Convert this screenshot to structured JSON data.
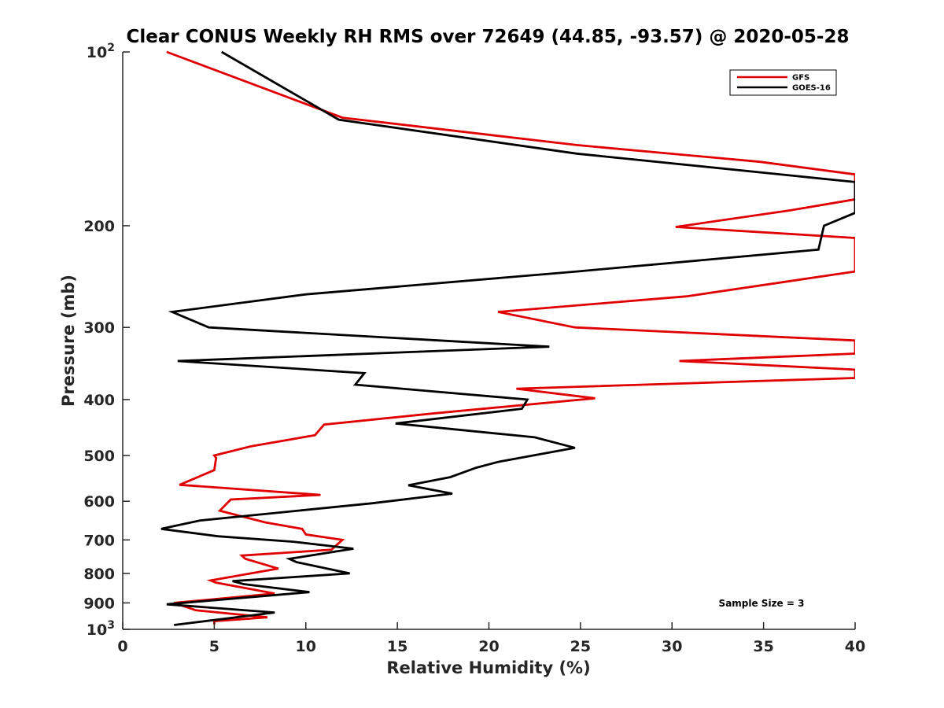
{
  "chart_data": {
    "type": "line",
    "title": "Clear CONUS Weekly RH RMS over 72649 (44.85, -93.57) @ 2020-05-28",
    "xlabel": "Relative Humidity (%)",
    "ylabel": "Pressure (mb)",
    "xlim": [
      0,
      40
    ],
    "ylim": [
      100,
      1000
    ],
    "yscale": "log",
    "y_reversed": true,
    "grid": false,
    "legend_position": "top-right",
    "x_ticks": [
      "0",
      "5",
      "10",
      "15",
      "20",
      "25",
      "30",
      "35",
      "40"
    ],
    "y_ticks": [
      {
        "value": 100,
        "base": "10",
        "exp": "2"
      },
      {
        "value": 200,
        "label": "200"
      },
      {
        "value": 300,
        "label": "300"
      },
      {
        "value": 400,
        "label": "400"
      },
      {
        "value": 500,
        "label": "500"
      },
      {
        "value": 600,
        "label": "600"
      },
      {
        "value": 700,
        "label": "700"
      },
      {
        "value": 800,
        "label": "800"
      },
      {
        "value": 900,
        "label": "900"
      },
      {
        "value": 1000,
        "base": "10",
        "exp": "3"
      }
    ],
    "annotation": "Sample Size = 3",
    "series": [
      {
        "name": "GFS",
        "color": "#e00000",
        "x": [
          2.4,
          12,
          24.8,
          34.8,
          40,
          40,
          36.5,
          30.2,
          40,
          40,
          30.8,
          20.5,
          24.7,
          40,
          40,
          30.4,
          40,
          40,
          21.5,
          25.8,
          16.9,
          11.0,
          10.5,
          7.0,
          5.0,
          5.1,
          5.0,
          3.1,
          10.8,
          5.9,
          5.3,
          7.8,
          9.8,
          10.0,
          12.0,
          11.4,
          6.5,
          6.7,
          8.5,
          4.8,
          5.1,
          8.3,
          2.8,
          4.0,
          7.9,
          5.0,
          5.0
        ],
        "y": [
          100,
          130,
          145,
          155,
          163,
          180,
          188,
          201,
          210,
          240,
          265,
          282,
          300,
          316,
          333,
          343,
          355,
          367,
          383,
          398,
          423,
          442,
          461,
          482,
          500,
          505,
          530,
          562,
          585,
          596,
          623,
          653,
          670,
          685,
          700,
          728,
          745,
          755,
          785,
          823,
          830,
          867,
          900,
          927,
          953,
          968,
          980
        ]
      },
      {
        "name": "GOES-16",
        "color": "#000000",
        "x": [
          5.4,
          11.8,
          24.8,
          40,
          40,
          38.3,
          38,
          24.8,
          10,
          2.7,
          4.7,
          23.3,
          3.0,
          13.2,
          12.7,
          22.1,
          21.8,
          14.9,
          22.5,
          24.7,
          20.5,
          19.3,
          17.9,
          15.6,
          18,
          13.6,
          4.2,
          2.1,
          5.2,
          9.3,
          12.6,
          9.1,
          9.5,
          12.4,
          6.0,
          6.6,
          10.2,
          2.4,
          8.3,
          2.8
        ],
        "y": [
          100,
          131,
          150,
          168,
          190,
          200,
          220,
          240,
          263,
          282,
          300,
          324,
          343,
          360,
          377,
          400,
          415,
          440,
          465,
          485,
          513,
          525,
          545,
          563,
          582,
          605,
          648,
          670,
          690,
          705,
          725,
          755,
          765,
          800,
          825,
          835,
          862,
          905,
          935,
          983
        ]
      }
    ]
  }
}
